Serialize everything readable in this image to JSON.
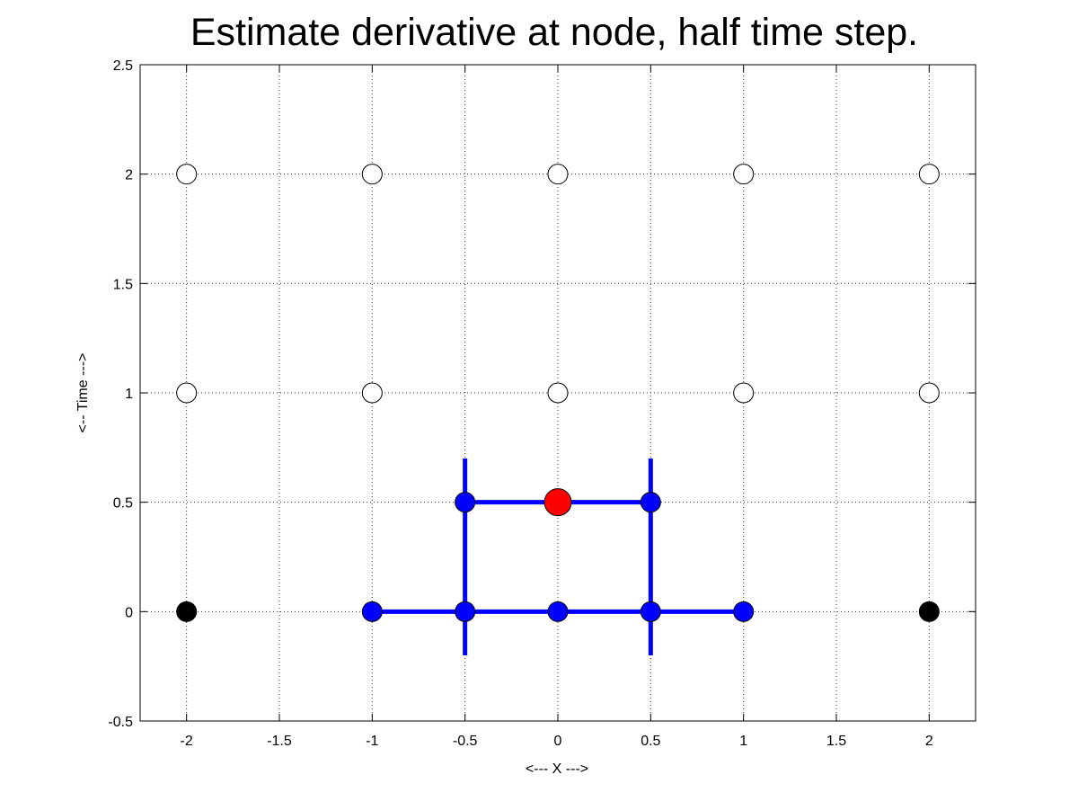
{
  "chart_data": {
    "type": "scatter",
    "title": "Estimate derivative at node, half time step.",
    "xlabel": "<--- X --->",
    "ylabel": "<-- Time --->",
    "xlim": [
      -2.25,
      2.25
    ],
    "ylim": [
      -0.5,
      2.5
    ],
    "xticks": [
      -2,
      -1.5,
      -1,
      -0.5,
      0,
      0.5,
      1,
      1.5,
      2
    ],
    "xtick_labels": [
      "-2",
      "-1.5",
      "-1",
      "-0.5",
      "0",
      "0.5",
      "1",
      "1.5",
      "2"
    ],
    "yticks": [
      -0.5,
      0,
      0.5,
      1,
      1.5,
      2,
      2.5
    ],
    "ytick_labels": [
      "-0.5",
      "0",
      "0.5",
      "1",
      "1.5",
      "2",
      "2.5"
    ],
    "grid": true,
    "colors": {
      "empty_node": "#ffffff",
      "known_node": "#000000",
      "stencil": "#0000ff",
      "target": "#ff0000"
    },
    "lines": [
      {
        "x": [
          -1,
          1
        ],
        "y": [
          0,
          0
        ]
      },
      {
        "x": [
          -0.5,
          0.5
        ],
        "y": [
          0.5,
          0.5
        ]
      },
      {
        "x": [
          -0.5,
          -0.5
        ],
        "y": [
          -0.2,
          0.7
        ]
      },
      {
        "x": [
          0.5,
          0.5
        ],
        "y": [
          -0.2,
          0.7
        ]
      }
    ],
    "series": [
      {
        "role": "empty_node",
        "points": [
          [
            -2,
            2
          ],
          [
            -1,
            2
          ],
          [
            0,
            2
          ],
          [
            1,
            2
          ],
          [
            2,
            2
          ],
          [
            -2,
            1
          ],
          [
            -1,
            1
          ],
          [
            0,
            1
          ],
          [
            1,
            1
          ],
          [
            2,
            1
          ]
        ]
      },
      {
        "role": "known_node",
        "points": [
          [
            -2,
            0
          ],
          [
            2,
            0
          ]
        ]
      },
      {
        "role": "stencil",
        "points": [
          [
            -1,
            0
          ],
          [
            -0.5,
            0
          ],
          [
            0,
            0
          ],
          [
            0.5,
            0
          ],
          [
            1,
            0
          ],
          [
            -0.5,
            0.5
          ],
          [
            0.5,
            0.5
          ]
        ]
      },
      {
        "role": "target",
        "points": [
          [
            0,
            0.5
          ]
        ]
      }
    ]
  }
}
